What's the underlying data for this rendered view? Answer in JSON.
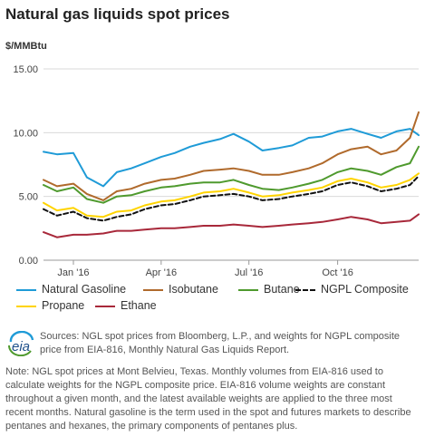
{
  "title": "Natural gas liquids spot prices",
  "unit_label": "$/MMBtu",
  "sources": "Sources: NGL spot prices from Bloomberg, L.P., and weights for NGPL composite price from EIA-816, Monthly Natural Gas Liquids Report.",
  "note": "Note: NGL spot prices at Mont Belvieu, Texas. Monthly volumes from EIA-816 used to calculate weights for the NGPL composite price. EIA-816 volume weights are constant throughout a given month, and the latest available weights are applied to the three most recent months. Natural gasoline is the term used in the spot and futures markets to describe pentanes and hexanes, the primary components of pentanes plus.",
  "logo_text": "eia",
  "chart_data": {
    "type": "line",
    "title": "Natural gas liquids spot prices",
    "ylabel": "$/MMBtu",
    "ylim": [
      0,
      15
    ],
    "yticks": [
      "0.00",
      "5.00",
      "10.00",
      "15.00"
    ],
    "xlim": [
      "2015-12-01",
      "2016-12-24"
    ],
    "xticks": [
      {
        "label": "Jan '16",
        "date": "2016-01-01"
      },
      {
        "label": "Apr '16",
        "date": "2016-04-01"
      },
      {
        "label": "Jul '16",
        "date": "2016-07-01"
      },
      {
        "label": "Oct '16",
        "date": "2016-10-01"
      }
    ],
    "grid": "horizontal",
    "legend_position": "bottom",
    "x": [
      "2015-12-01",
      "2015-12-15",
      "2016-01-01",
      "2016-01-15",
      "2016-02-01",
      "2016-02-15",
      "2016-03-01",
      "2016-03-15",
      "2016-04-01",
      "2016-04-15",
      "2016-05-01",
      "2016-05-15",
      "2016-06-01",
      "2016-06-15",
      "2016-07-01",
      "2016-07-15",
      "2016-08-01",
      "2016-08-15",
      "2016-09-01",
      "2016-09-15",
      "2016-10-01",
      "2016-10-15",
      "2016-11-01",
      "2016-11-15",
      "2016-12-01",
      "2016-12-15",
      "2016-12-24"
    ],
    "series": [
      {
        "name": "Natural Gasoline",
        "color": "#1f9bd7",
        "dash": "",
        "values": [
          8.5,
          8.3,
          8.4,
          6.5,
          5.8,
          6.9,
          7.2,
          7.6,
          8.1,
          8.4,
          8.9,
          9.2,
          9.5,
          9.9,
          9.3,
          8.6,
          8.8,
          9.0,
          9.6,
          9.7,
          10.1,
          10.3,
          9.9,
          9.6,
          10.1,
          10.3,
          9.8
        ]
      },
      {
        "name": "Isobutane",
        "color": "#b06a2c",
        "dash": "",
        "values": [
          6.3,
          5.8,
          6.0,
          5.2,
          4.7,
          5.4,
          5.6,
          6.0,
          6.3,
          6.4,
          6.7,
          7.0,
          7.1,
          7.2,
          7.0,
          6.7,
          6.7,
          6.9,
          7.2,
          7.6,
          8.3,
          8.7,
          8.9,
          8.3,
          8.6,
          9.6,
          11.6
        ]
      },
      {
        "name": "Butane",
        "color": "#4f9a2e",
        "dash": "",
        "values": [
          5.9,
          5.4,
          5.7,
          4.8,
          4.5,
          5.0,
          5.1,
          5.4,
          5.7,
          5.8,
          6.0,
          6.1,
          6.1,
          6.3,
          5.9,
          5.6,
          5.5,
          5.7,
          6.0,
          6.3,
          6.9,
          7.2,
          7.0,
          6.7,
          7.3,
          7.6,
          8.9
        ]
      },
      {
        "name": "NGPL Composite",
        "color": "#111111",
        "dash": "5,3",
        "values": [
          4.0,
          3.5,
          3.8,
          3.3,
          3.1,
          3.4,
          3.6,
          4.0,
          4.3,
          4.4,
          4.7,
          5.0,
          5.1,
          5.2,
          5.0,
          4.7,
          4.8,
          5.0,
          5.2,
          5.4,
          5.9,
          6.1,
          5.8,
          5.4,
          5.6,
          5.9,
          6.6
        ]
      },
      {
        "name": "Propane",
        "color": "#ffd400",
        "dash": "",
        "values": [
          4.5,
          3.9,
          4.1,
          3.5,
          3.4,
          3.8,
          3.9,
          4.3,
          4.6,
          4.7,
          5.0,
          5.3,
          5.4,
          5.6,
          5.3,
          5.0,
          5.1,
          5.3,
          5.5,
          5.7,
          6.2,
          6.4,
          6.1,
          5.7,
          5.9,
          6.3,
          6.8
        ]
      },
      {
        "name": "Ethane",
        "color": "#a8283a",
        "dash": "",
        "values": [
          2.2,
          1.8,
          2.0,
          2.0,
          2.1,
          2.3,
          2.3,
          2.4,
          2.5,
          2.5,
          2.6,
          2.7,
          2.7,
          2.8,
          2.7,
          2.6,
          2.7,
          2.8,
          2.9,
          3.0,
          3.2,
          3.4,
          3.2,
          2.9,
          3.0,
          3.1,
          3.6
        ]
      }
    ]
  }
}
